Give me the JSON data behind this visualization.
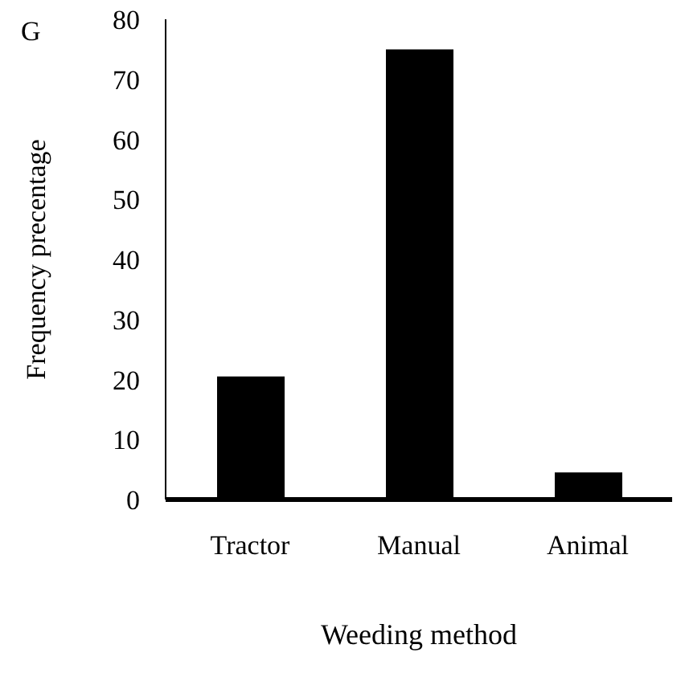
{
  "chart_data": {
    "type": "bar",
    "xlabel": "Weeding method",
    "ylabel": "Frequency precentage",
    "annotations": [
      "G"
    ],
    "categories": [
      "Tractor",
      "Manual",
      "Animal"
    ],
    "values": [
      20.5,
      75,
      4.5
    ],
    "color": "#000000",
    "ylim": [
      0,
      80
    ],
    "yticks": [
      0,
      10,
      20,
      30,
      40,
      50,
      60,
      70,
      80
    ],
    "grid": false
  }
}
